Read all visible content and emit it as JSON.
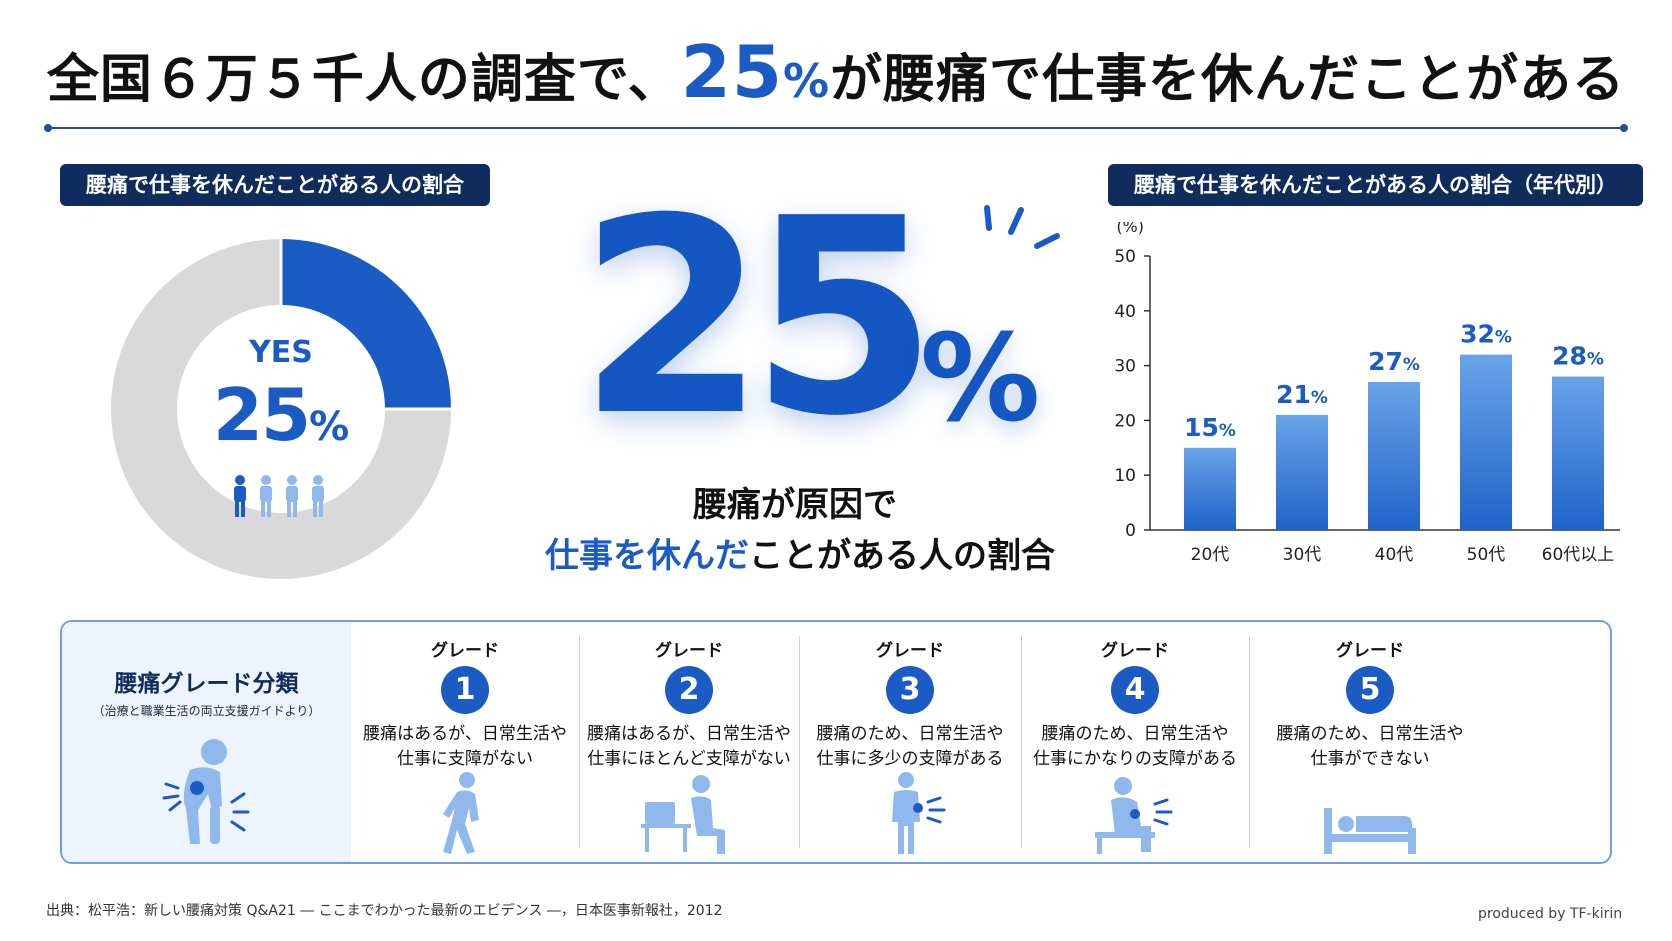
{
  "title": {
    "prefix": "全国６万５千人の調査で、",
    "highlight_number": "25",
    "highlight_unit": "%",
    "suffix": "が腰痛で仕事を休んだことがある"
  },
  "left_section": {
    "heading": "腰痛で仕事を休んだことがある人の割合",
    "yes_label": "YES",
    "value_number": "25",
    "value_unit": "%"
  },
  "center": {
    "big_number": "25",
    "big_unit": "%",
    "caption_line1": "腰痛が原因で",
    "caption_line2_highlight": "仕事を休んだ",
    "caption_line2_rest": "ことがある人の割合"
  },
  "chart_data": [
    {
      "type": "pie",
      "title": "腰痛で仕事を休んだことがある人の割合",
      "slices": [
        {
          "name": "YES",
          "value": 25,
          "color": "#1a5bc4"
        },
        {
          "name": "",
          "value": 75,
          "color": "#d9d9d9"
        }
      ]
    },
    {
      "type": "bar",
      "title": "腰痛で仕事を休んだことがある人の割合（年代別）",
      "categories": [
        "20代",
        "30代",
        "40代",
        "50代",
        "60代以上"
      ],
      "values": [
        15,
        21,
        27,
        32,
        28
      ],
      "value_labels": [
        "15",
        "21",
        "27",
        "32",
        "28"
      ],
      "value_unit": "%",
      "ylabel": "(%)",
      "ylim": [
        0,
        50
      ],
      "yticks": [
        0,
        10,
        20,
        30,
        40,
        50
      ],
      "grid": false,
      "bar_color_top": "#6aa3e8",
      "bar_color_bottom": "#1f63c9"
    }
  ],
  "grades": {
    "title": "腰痛グレード分類",
    "source": "（治療と職業生活の両立支援ガイドより）",
    "intro_icon": "back-pain-person-icon",
    "items": [
      {
        "label": "グレード",
        "number": "1",
        "line1": "腰痛はあるが、日常生活や",
        "line2": "仕事に支障がない",
        "icon": "walking-person-icon"
      },
      {
        "label": "グレード",
        "number": "2",
        "line1": "腰痛はあるが、日常生活や",
        "line2": "仕事にほとんど支障がない",
        "icon": "desk-worker-icon"
      },
      {
        "label": "グレード",
        "number": "3",
        "line1": "腰痛のため、日常生活や",
        "line2": "仕事に多少の支障がある",
        "icon": "standing-pain-icon"
      },
      {
        "label": "グレード",
        "number": "4",
        "line1": "腰痛のため、日常生活や",
        "line2": "仕事にかなりの支障がある",
        "icon": "sitting-pain-icon"
      },
      {
        "label": "グレード",
        "number": "5",
        "line1": "腰痛のため、日常生活や",
        "line2": "仕事ができない",
        "icon": "bedridden-icon"
      }
    ]
  },
  "footer": {
    "source": "出典：松平浩：新しい腰痛対策 Q&A21 ― ここまでわかった最新のエビデンス ―，日本医事新報社，2012",
    "credit": "produced by TF-kirin"
  },
  "colors": {
    "accent": "#1a5bc4",
    "navy": "#102c5c",
    "light_bar": "#d9d9d9",
    "icon_light": "#8fb8ec"
  }
}
